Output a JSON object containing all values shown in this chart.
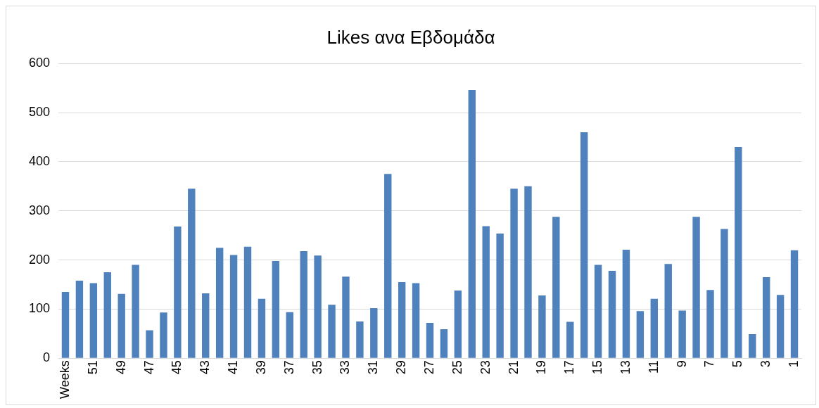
{
  "chart_data": {
    "type": "bar",
    "title": "Likes ανα Εβδομάδα",
    "categories": [
      "Weeks",
      null,
      "51",
      null,
      "49",
      null,
      "47",
      null,
      "45",
      null,
      "43",
      null,
      "41",
      null,
      "39",
      null,
      "37",
      null,
      "35",
      null,
      "33",
      null,
      "31",
      null,
      "29",
      null,
      "27",
      null,
      "25",
      null,
      "23",
      null,
      "21",
      null,
      "19",
      null,
      "17",
      null,
      "15",
      null,
      "13",
      null,
      "11",
      null,
      "9",
      null,
      "7",
      null,
      "5",
      null,
      "3",
      null,
      "1"
    ],
    "values": [
      135,
      158,
      153,
      175,
      131,
      190,
      57,
      93,
      268,
      345,
      132,
      225,
      210,
      227,
      121,
      198,
      94,
      218,
      209,
      109,
      166,
      75,
      102,
      375,
      155,
      153,
      72,
      59,
      138,
      546,
      269,
      254,
      345,
      350,
      128,
      288,
      74,
      460,
      190,
      178,
      221,
      96,
      121,
      192,
      97,
      288,
      139,
      263,
      430,
      49,
      165,
      129,
      220
    ],
    "color": "#4f81bd",
    "ylim": [
      0,
      600
    ],
    "yticks": [
      0,
      100,
      200,
      300,
      400,
      500,
      600
    ],
    "grid": "y",
    "legend": false
  }
}
